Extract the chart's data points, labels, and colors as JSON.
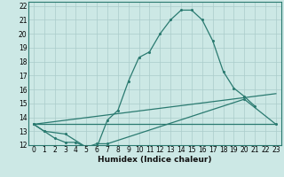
{
  "xlabel": "Humidex (Indice chaleur)",
  "bg_color": "#cce8e5",
  "line_color": "#2a7a70",
  "grid_color": "#aaccca",
  "xlim": [
    -0.5,
    23.5
  ],
  "ylim": [
    12,
    22.3
  ],
  "xticks": [
    0,
    1,
    2,
    3,
    4,
    5,
    6,
    7,
    8,
    9,
    10,
    11,
    12,
    13,
    14,
    15,
    16,
    17,
    18,
    19,
    20,
    21,
    22,
    23
  ],
  "yticks": [
    12,
    13,
    14,
    15,
    16,
    17,
    18,
    19,
    20,
    21,
    22
  ],
  "line1": {
    "x": [
      0,
      1,
      2,
      3,
      4,
      5,
      6,
      7,
      8,
      9,
      10,
      11,
      12,
      13,
      14,
      15,
      16,
      17,
      18,
      19,
      20,
      21
    ],
    "y": [
      13.5,
      13.0,
      12.5,
      12.2,
      12.2,
      11.85,
      11.85,
      13.8,
      14.5,
      16.6,
      18.3,
      18.7,
      20.0,
      21.0,
      21.7,
      21.7,
      21.0,
      19.5,
      17.3,
      16.1,
      15.5,
      14.8
    ]
  },
  "line2": {
    "x": [
      0,
      1,
      3,
      5,
      6,
      7,
      20,
      23
    ],
    "y": [
      13.5,
      13.0,
      12.8,
      11.85,
      12.1,
      12.1,
      15.3,
      13.5
    ]
  },
  "line3": {
    "x": [
      0,
      23
    ],
    "y": [
      13.5,
      13.5
    ]
  },
  "line4": {
    "x": [
      0,
      23
    ],
    "y": [
      13.5,
      15.7
    ]
  },
  "tick_fontsize": 5.5,
  "xlabel_fontsize": 6.5,
  "marker_size": 2.2,
  "linewidth": 0.9
}
